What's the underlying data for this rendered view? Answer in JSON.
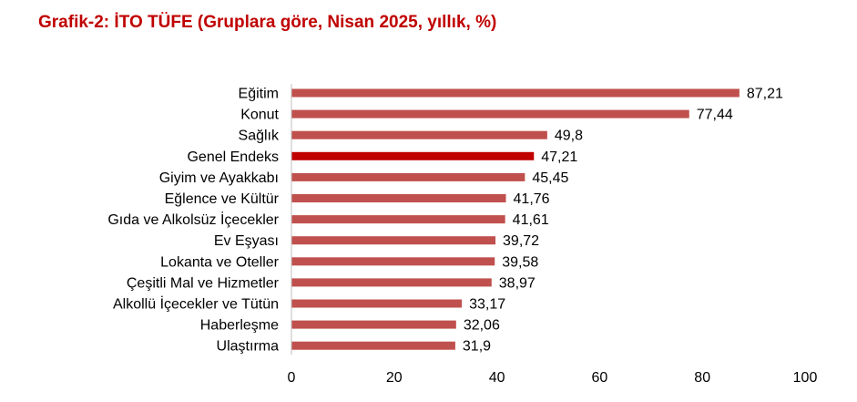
{
  "chart_data": {
    "type": "bar",
    "orientation": "horizontal",
    "title": "Grafik-2: İTO TÜFE (Gruplara göre, Nisan 2025, yıllık, %)",
    "categories": [
      "Eğitim",
      "Konut",
      "Sağlık",
      "Genel Endeks",
      "Giyim ve Ayakkabı",
      "Eğlence ve Kültür",
      "Gıda ve Alkolsüz İçecekler",
      "Ev Eşyası",
      "Lokanta ve Oteller",
      "Çeşitli Mal ve Hizmetler",
      "Alkollü İçecekler ve Tütün",
      "Haberleşme",
      "Ulaştırma"
    ],
    "values": [
      87.21,
      77.44,
      49.8,
      47.21,
      45.45,
      41.76,
      41.61,
      39.72,
      39.58,
      38.97,
      33.17,
      32.06,
      31.9
    ],
    "value_labels": [
      "87,21",
      "77,44",
      "49,8",
      "47,21",
      "45,45",
      "41,76",
      "41,61",
      "39,72",
      "39,58",
      "38,97",
      "33,17",
      "32,06",
      "31,9"
    ],
    "xlim": [
      0,
      100
    ],
    "xticks": [
      0,
      20,
      40,
      60,
      80,
      100
    ],
    "xtick_labels": [
      "0",
      "20",
      "40",
      "60",
      "80",
      "100"
    ],
    "grid": false,
    "legend": "none",
    "colors": {
      "bar": "#c0504d",
      "highlight_bar": "#c00000",
      "highlight_category": "Genel Endeks",
      "title": "#c00000",
      "axis": "#bfbfbf"
    }
  }
}
